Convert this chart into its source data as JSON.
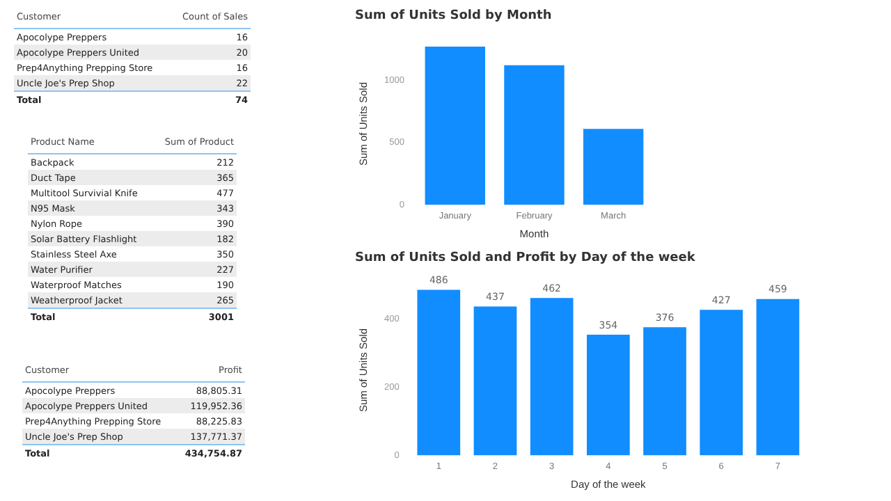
{
  "chart_data": [
    {
      "type": "other",
      "xlabel": "Customer",
      "ylabel": "Count of Sales",
      "categories": [
        "Apocolype Preppers",
        "Apocolype Preppers United",
        "Prep4Anything Prepping Store",
        "Uncle Joe's Prep Shop"
      ],
      "values": [
        16,
        20,
        16,
        22
      ],
      "data_labels": true,
      "annotations": [
        "Total"
      ],
      "totals": [
        "74"
      ]
    },
    {
      "type": "bar",
      "title": "Sum of Units Sold by Month",
      "xlabel": "Month",
      "ylabel": "Sum of Units Sold",
      "categories": [
        "January",
        "February",
        "March"
      ],
      "values": [
        1270,
        1120,
        610
      ],
      "color": "#118dff",
      "ylim": [
        0,
        1300
      ],
      "yticks": [
        0,
        500,
        1000
      ],
      "grid": false,
      "legend": false
    },
    {
      "type": "other",
      "xlabel": "Product Name",
      "ylabel": "Sum of Product",
      "categories": [
        "Backpack",
        "Duct Tape",
        "Multitool Survivial Knife",
        "N95 Mask",
        "Nylon Rope",
        "Solar Battery Flashlight",
        "Stainless Steel Axe",
        "Water Purifier",
        "Waterproof Matches",
        "Weatherproof Jacket"
      ],
      "values": [
        212,
        365,
        477,
        343,
        390,
        182,
        350,
        227,
        190,
        265
      ],
      "data_labels": true,
      "annotations": [
        "Total"
      ],
      "totals": [
        "3001"
      ]
    },
    {
      "type": "bar",
      "title": "Sum of Units Sold and Profit by Day of the week",
      "xlabel": "Day of the week",
      "ylabel": "Sum of Units Sold",
      "categories": [
        "1",
        "2",
        "3",
        "4",
        "5",
        "6",
        "7"
      ],
      "values": [
        486,
        437,
        462,
        354,
        376,
        427,
        459
      ],
      "color": "#118dff",
      "ylim": [
        0,
        500
      ],
      "yticks": [
        0,
        200,
        400
      ],
      "grid": false,
      "legend": false,
      "data_labels": true
    },
    {
      "type": "other",
      "xlabel": "Customer",
      "ylabel": "Profit",
      "categories": [
        "Apocolype Preppers",
        "Apocolype Preppers United",
        "Prep4Anything Prepping Store",
        "Uncle Joe's Prep Shop"
      ],
      "values": [
        88805.31,
        119952.36,
        88225.83,
        137771.37
      ],
      "value_labels": [
        "88,805.31",
        "119,952.36",
        "88,225.83",
        "137,771.37"
      ],
      "data_labels": true,
      "annotations": [
        "Total"
      ],
      "totals": [
        "434,754.87"
      ]
    }
  ]
}
